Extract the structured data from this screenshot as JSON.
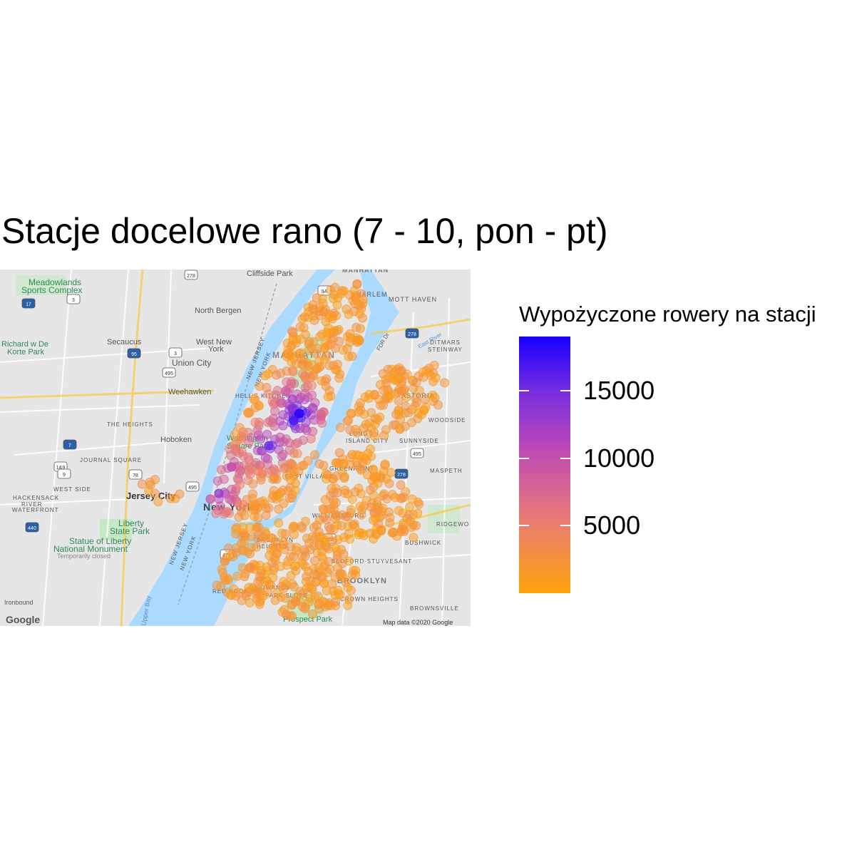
{
  "title": "Stacje docelowe rano (7 - 10, pon - pt)",
  "legend": {
    "title": "Wypożyczone rowery na stacji",
    "ticks": [
      {
        "value": 15000,
        "label": "15000"
      },
      {
        "value": 10000,
        "label": "10000"
      },
      {
        "value": 5000,
        "label": "5000"
      }
    ],
    "min": 0,
    "max": 19000,
    "low_color": "#ffa20a",
    "high_color": "#1800ff"
  },
  "map": {
    "water_color": "#aadaff",
    "land_color": "#e8e8e8",
    "park_color": "#c5e8c5",
    "labels": [
      "Cliffside Park",
      "MANHATTAN",
      "Meadowlands",
      "Sports Complex",
      "HARLEM",
      "MOTT HAVEN",
      "North Bergen",
      "West New",
      "York",
      "Secaucus",
      "Union City",
      "MANHATTAN",
      "Richard w De",
      "Korte Park",
      "Weehawken",
      "DITMARS",
      "STEINWAY",
      "ASTORIA",
      "HELL'S KITCHEN",
      "WOODSIDE",
      "THE HEIGHTS",
      "Hoboken",
      "LONG",
      "ISLAND CITY",
      "SUNNYSIDE",
      "Washington",
      "Square Park",
      "JOURNAL SQUARE",
      "GREENPOINT",
      "MASPETH",
      "EAST VILLAGE",
      "WEST SIDE",
      "Jersey City",
      "HACKENSACK",
      "RIVER",
      "WATERFRONT",
      "New York",
      "WILLIAMSBURG",
      "RIDGEWO",
      "Liberty",
      "State Park",
      "Statue of Liberty",
      "National Monument",
      "Temporarily closed",
      "BROOKLYN",
      "HEIGHTS",
      "BUSHWICK",
      "BEDFORD-STUYVESANT",
      "RED HOOK",
      "BROOKLYN",
      "GOWANUS",
      "PARK SLOPE",
      "CROWN HEIGHTS",
      "BROWNSVILLE",
      "Prospect Park",
      "NEW JERSEY",
      "NEW YORK",
      "NEW JERSEY",
      "NEW YORK",
      "FDR Dr",
      "East River",
      "Upper Bay",
      "Ironbound",
      "Google",
      "Map data ©2020 Google"
    ],
    "route_shields": [
      "95",
      "495",
      "9A",
      "278",
      "278",
      "495",
      "278",
      "278",
      "478",
      "440",
      "1&9",
      "78",
      "7",
      "9",
      "3",
      "17",
      "3",
      "495"
    ]
  },
  "point_series": {
    "name": "Wypożyczone rowery na stacji",
    "hotspots": [
      {
        "x": 420,
        "y": 580,
        "value": 18500
      },
      {
        "x": 412,
        "y": 590,
        "value": 17000
      },
      {
        "x": 377,
        "y": 625,
        "value": 15500
      },
      {
        "x": 307,
        "y": 692,
        "value": 13000
      },
      {
        "x": 410,
        "y": 560,
        "value": 12000
      },
      {
        "x": 325,
        "y": 655,
        "value": 10000
      },
      {
        "x": 295,
        "y": 700,
        "value": 9000
      }
    ]
  }
}
